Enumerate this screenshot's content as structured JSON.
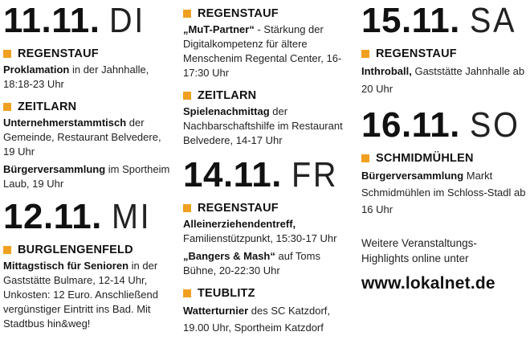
{
  "columns": {
    "col1": {
      "d1": {
        "date": "11.11.",
        "day": "DI"
      },
      "e1": {
        "location": "REGENSTAUF",
        "title": "Proklamation",
        "rest": " in der Jahnhalle, 18:18-23 Uhr"
      },
      "e2": {
        "location": "ZEITLARN",
        "title": "Unternehmerstammtisch",
        "rest": " der Gemeinde, Restaurant Belvedere, 19 Uhr"
      },
      "e3": {
        "title": "Bürgerversammlung",
        "rest": " im Sportheim Laub, 19 Uhr"
      },
      "d2": {
        "date": "12.11.",
        "day": "MI"
      },
      "e4": {
        "location": "BURGLENGENFELD",
        "title": "Mittagstisch für Senioren",
        "rest": " in der Gaststätte Bulmare, 12-14 Uhr, Unkosten: 12 Euro. Anschließend vergünstiger Eintritt ins Bad. Mit Stadtbus hin&weg!"
      }
    },
    "col2": {
      "e1": {
        "location": "REGENSTAUF",
        "title": "„MuT-Partner“",
        "rest": " - Stärkung der Digitalkompetenz für ältere Menschenim Regental Center, 16-17:30 Uhr"
      },
      "e2": {
        "location": "ZEITLARN",
        "title": "Spielenachmittag",
        "rest": " der Nachbarschaftshilfe im Restaurant Belvedere, 14-17 Uhr"
      },
      "d1": {
        "date": "14.11.",
        "day": "FR"
      },
      "e3": {
        "location": "REGENSTAUF",
        "title": "Alleinerziehendentreff,",
        "rest": " Familienstützpunkt, 15:30-17 Uhr"
      },
      "e4": {
        "title": "„Bangers & Mash“",
        "rest": " auf Toms Bühne, 20-22:30 Uhr"
      },
      "e5": {
        "location": "TEUBLITZ",
        "title": "Watterturnier",
        "rest": " des SC Katzdorf, 19.00 Uhr, Sportheim Katzdorf"
      }
    },
    "col3": {
      "d1": {
        "date": "15.11.",
        "day": "SA"
      },
      "e1": {
        "location": "REGENSTAUF",
        "title": "Inthroball,",
        "rest": " Gaststätte Jahnhalle ab 20 Uhr"
      },
      "d2": {
        "date": "16.11.",
        "day": "SO"
      },
      "e2": {
        "location": "SCHMIDMÜHLEN",
        "title": "Bürgerversammlung",
        "rest": " Markt Schmidmühlen im Schloss-Stadl ab 16 Uhr"
      },
      "more_text": "Weitere Veranstaltungs-Highlights online unter",
      "url": "www.lokalnet.de"
    }
  },
  "colors": {
    "accent": "#f0a020",
    "text": "#1a1a1a"
  }
}
